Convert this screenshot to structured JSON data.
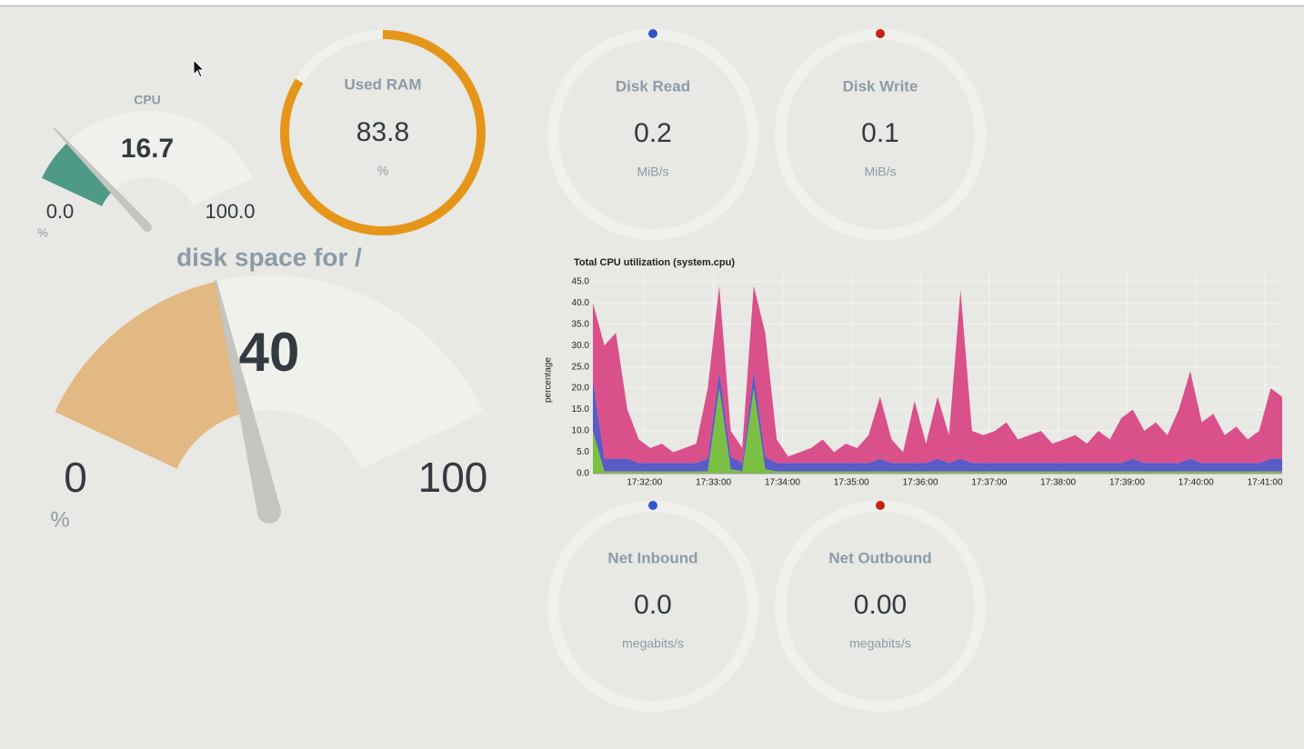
{
  "cpu_gauge": {
    "title": "CPU",
    "value": 16.7,
    "min": {
      "value": 0,
      "label": "0.0"
    },
    "max": {
      "value": 100,
      "label": "100.0"
    },
    "unit": "%",
    "color": "#4e9a86"
  },
  "ram": {
    "title": "Used RAM",
    "value": 83.8,
    "unit": "%",
    "color": "#e5961a"
  },
  "disk_read": {
    "title": "Disk Read",
    "value": 0.2,
    "unit": "MiB/s",
    "dot_color": "#3355cc"
  },
  "disk_write": {
    "title": "Disk Write",
    "value": 0.1,
    "unit": "MiB/s",
    "dot_color": "#cc2211"
  },
  "net_inbound": {
    "title": "Net Inbound",
    "value": "0.0",
    "unit": "megabits/s",
    "dot_color": "#3355cc"
  },
  "net_outbound": {
    "title": "Net Outbound",
    "value": "0.00",
    "unit": "megabits/s",
    "dot_color": "#cc2211"
  },
  "disk_gauge": {
    "title": "disk space for /",
    "value": 40,
    "min": 0,
    "max": 100,
    "unit": "%",
    "color": "#e2b883"
  },
  "chart_data": {
    "type": "stacked_area",
    "title": "Total CPU utilization (system.cpu)",
    "y_label": "percentage",
    "x": [
      "17:31:15",
      "17:31:25",
      "17:31:35",
      "17:31:45",
      "17:31:55",
      "17:32:05",
      "17:32:15",
      "17:32:25",
      "17:32:35",
      "17:32:45",
      "17:32:55",
      "17:33:05",
      "17:33:15",
      "17:33:25",
      "17:33:35",
      "17:33:45",
      "17:33:55",
      "17:34:05",
      "17:34:15",
      "17:34:25",
      "17:34:35",
      "17:34:45",
      "17:34:55",
      "17:35:05",
      "17:35:15",
      "17:35:25",
      "17:35:35",
      "17:35:45",
      "17:35:55",
      "17:36:05",
      "17:36:15",
      "17:36:25",
      "17:36:35",
      "17:36:45",
      "17:36:55",
      "17:37:05",
      "17:37:15",
      "17:37:25",
      "17:37:35",
      "17:37:45",
      "17:37:55",
      "17:38:05",
      "17:38:15",
      "17:38:25",
      "17:38:35",
      "17:38:45",
      "17:38:55",
      "17:39:05",
      "17:39:15",
      "17:39:25",
      "17:39:35",
      "17:39:45",
      "17:39:55",
      "17:40:05",
      "17:40:15",
      "17:40:25",
      "17:40:35",
      "17:40:45",
      "17:40:55",
      "17:41:05",
      "17:41:15"
    ],
    "series": [
      {
        "color": "#7bc043",
        "values": [
          10,
          0.5,
          0.5,
          0.5,
          0.5,
          0.5,
          0.5,
          0.5,
          0.5,
          0.5,
          0.5,
          20,
          1,
          0.5,
          20,
          1,
          0.5,
          0.5,
          0.5,
          0.5,
          0.5,
          0.5,
          0.5,
          0.5,
          0.5,
          0.5,
          0.5,
          0.5,
          0.5,
          0.5,
          0.5,
          0.5,
          0.5,
          0.5,
          0.5,
          0.5,
          0.5,
          0.5,
          0.5,
          0.5,
          0.5,
          0.5,
          0.5,
          0.5,
          0.5,
          0.5,
          0.5,
          0.5,
          0.5,
          0.5,
          0.5,
          0.5,
          0.5,
          0.5,
          0.5,
          0.5,
          0.5,
          0.5,
          0.5,
          0.5,
          0.5
        ]
      },
      {
        "color": "#5b5bc6",
        "values": [
          12,
          3,
          3,
          3,
          2,
          2,
          2,
          2,
          2,
          2,
          3,
          4,
          3,
          2,
          4,
          3,
          2,
          2,
          2,
          2,
          2,
          2,
          2,
          2,
          2,
          3,
          2,
          2,
          2,
          2,
          3,
          2,
          3,
          2,
          2,
          2,
          2,
          2,
          2,
          2,
          2,
          2,
          2,
          2,
          2,
          2,
          2,
          3,
          2,
          2,
          2,
          2,
          3,
          2,
          2,
          2,
          2,
          2,
          2,
          3,
          3
        ]
      },
      {
        "color": "#d9508a",
        "values": [
          18,
          26.5,
          29.5,
          11.5,
          5.5,
          3.5,
          4.5,
          2.5,
          3.5,
          4.5,
          16.5,
          20,
          6,
          3.5,
          20,
          29,
          5.5,
          1.5,
          2.5,
          3.5,
          5.5,
          2.5,
          4.5,
          3.5,
          6.5,
          14.5,
          5.5,
          2.5,
          14.5,
          4.5,
          14.5,
          6.5,
          39.5,
          7.5,
          6.5,
          7.5,
          9.5,
          5.5,
          6.5,
          7.5,
          4.5,
          5.5,
          6.5,
          4.5,
          7.5,
          5.5,
          10.5,
          11.5,
          7.5,
          9.5,
          6.5,
          12.5,
          20.5,
          9.5,
          11.5,
          6.5,
          8.5,
          5.5,
          7.5,
          16.5,
          14.5
        ]
      }
    ],
    "xlim": [
      "17:31:15",
      "17:41:15"
    ],
    "xticks": [
      "17:32:00",
      "17:33:00",
      "17:34:00",
      "17:35:00",
      "17:36:00",
      "17:37:00",
      "17:38:00",
      "17:39:00",
      "17:40:00",
      "17:41:00"
    ],
    "ylim": [
      0,
      47.5
    ],
    "yticks": [
      {
        "value": 0,
        "label": "0.0"
      },
      {
        "value": 5,
        "label": "5.0"
      },
      {
        "value": 10,
        "label": "10.0"
      },
      {
        "value": 15,
        "label": "15.0"
      },
      {
        "value": 20,
        "label": "20.0"
      },
      {
        "value": 25,
        "label": "25.0"
      },
      {
        "value": 30,
        "label": "30.0"
      },
      {
        "value": 35,
        "label": "35.0"
      },
      {
        "value": 40,
        "label": "40.0"
      },
      {
        "value": 45,
        "label": "45.0"
      }
    ],
    "grid": true
  }
}
